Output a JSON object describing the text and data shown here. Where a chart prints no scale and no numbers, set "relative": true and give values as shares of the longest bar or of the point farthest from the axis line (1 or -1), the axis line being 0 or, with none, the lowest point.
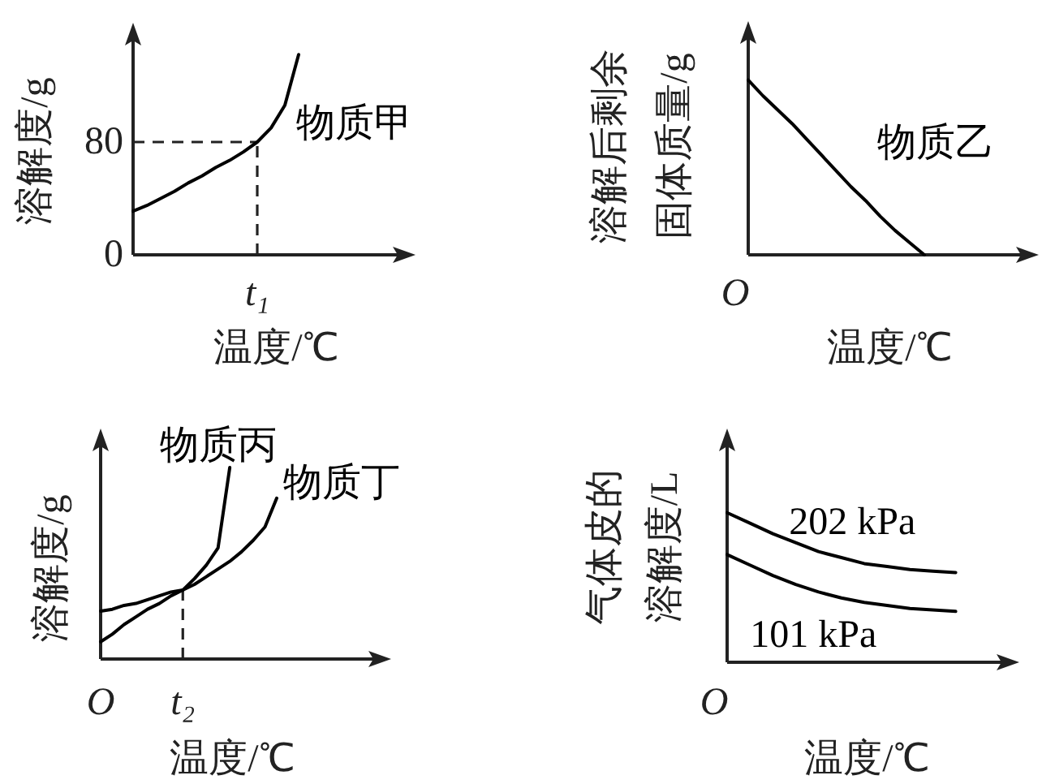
{
  "chart_data": [
    {
      "type": "line",
      "ylabel": "溶解度/g",
      "xlabel": "温度/℃",
      "ylim": [
        0,
        160
      ],
      "yticks": [
        0,
        80
      ],
      "categories": [
        null,
        null,
        null,
        null,
        null,
        null,
        null,
        null,
        null,
        "t₁",
        null,
        null,
        null
      ],
      "series": [
        {
          "name": "物质甲",
          "color": "#000000",
          "values": [
            31,
            35,
            40,
            45,
            51,
            56,
            62,
            67,
            73,
            80,
            90,
            106,
            142
          ]
        }
      ],
      "ref_lines": [
        {
          "axis": "y",
          "value": 80,
          "line_style": "dashed"
        },
        {
          "axis": "x",
          "value": "t₁",
          "line_style": "dashed"
        }
      ]
    },
    {
      "type": "line",
      "relative": true,
      "ylabel": "溶解后剩余固体质量/g",
      "xlabel": "温度/℃",
      "annotations": [
        "O"
      ],
      "categories": [
        null,
        null,
        null,
        null,
        null,
        null,
        null,
        null,
        null,
        null,
        null,
        null,
        null
      ],
      "series": [
        {
          "name": "物质乙",
          "color": "#000000",
          "values": [
            1,
            0.91,
            0.83,
            0.75,
            0.66,
            0.57,
            0.48,
            0.39,
            0.31,
            0.22,
            0.14,
            0.07,
            0
          ]
        }
      ]
    },
    {
      "type": "line",
      "relative": true,
      "ylabel": "溶解度/g",
      "xlabel": "温度/℃",
      "categories": [
        "O",
        null,
        null,
        null,
        null,
        null,
        null,
        "t₂",
        null,
        null,
        null,
        null,
        null,
        null,
        null,
        null
      ],
      "series": [
        {
          "name": "物质丙",
          "color": "#000000",
          "values": [
            0.09,
            0.13,
            0.18,
            0.22,
            0.26,
            0.29,
            0.33,
            0.36,
            0.42,
            0.49,
            0.58,
            1,
            null,
            null,
            null,
            null
          ]
        },
        {
          "name": "物质丁",
          "color": "#000000",
          "values": [
            0.25,
            0.26,
            0.28,
            0.29,
            0.31,
            0.33,
            0.35,
            0.36,
            0.39,
            0.43,
            0.47,
            0.51,
            0.56,
            0.62,
            0.69,
            0.84
          ]
        }
      ],
      "ref_lines": [
        {
          "axis": "x",
          "value": "t₂",
          "line_style": "dashed"
        }
      ]
    },
    {
      "type": "line",
      "relative": true,
      "ylabel": "气体皮的溶解度/L",
      "xlabel": "温度/℃",
      "annotations": [
        "O"
      ],
      "categories": [
        null,
        null,
        null,
        null,
        null,
        null,
        null,
        null,
        null,
        null,
        null
      ],
      "series": [
        {
          "name": "202 kPa",
          "color": "#000000",
          "values": [
            1,
            0.93,
            0.86,
            0.8,
            0.74,
            0.7,
            0.66,
            0.64,
            0.62,
            0.61,
            0.6
          ]
        },
        {
          "name": "101 kPa",
          "color": "#000000",
          "values": [
            0.72,
            0.65,
            0.58,
            0.52,
            0.47,
            0.43,
            0.4,
            0.38,
            0.36,
            0.35,
            0.34
          ]
        }
      ]
    }
  ]
}
